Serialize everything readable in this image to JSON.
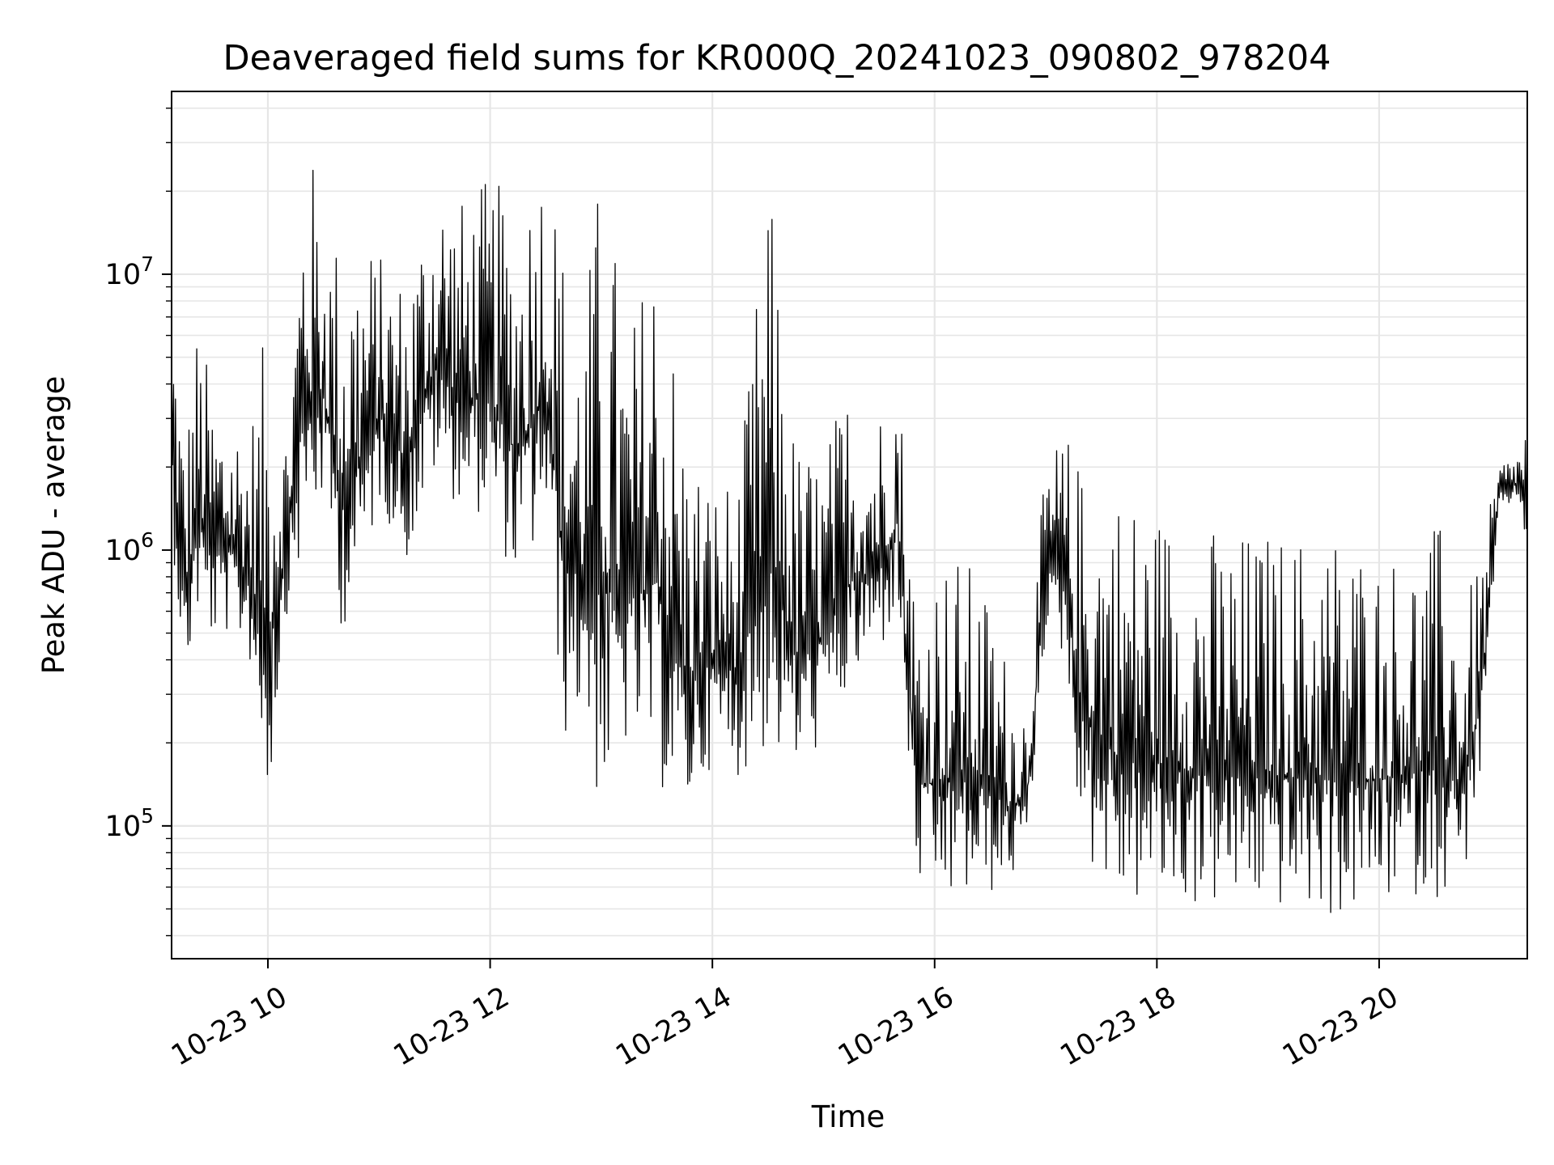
{
  "chart_data": {
    "type": "line",
    "title": "Deaveraged field sums for KR000Q_20241023_090802_978204",
    "xlabel": "Time",
    "ylabel": "Peak ADU - average",
    "xlim": [
      "2024-10-23 09:08",
      "2024-10-23 21:20"
    ],
    "ylim": [
      33000,
      46000000
    ],
    "yscale": "log",
    "grid": true,
    "legend": "none",
    "line_color": "#000000",
    "grid_color": "#e6e6e6",
    "x_ticks": [
      {
        "value": "2024-10-23 10:00",
        "label": "10-23 10"
      },
      {
        "value": "2024-10-23 12:00",
        "label": "10-23 12"
      },
      {
        "value": "2024-10-23 14:00",
        "label": "10-23 14"
      },
      {
        "value": "2024-10-23 16:00",
        "label": "10-23 16"
      },
      {
        "value": "2024-10-23 18:00",
        "label": "10-23 18"
      },
      {
        "value": "2024-10-23 20:00",
        "label": "10-23 20"
      }
    ],
    "y_ticks": [
      {
        "value": 100000,
        "base": "10",
        "exp": "5"
      },
      {
        "value": 1000000,
        "base": "10",
        "exp": "6"
      },
      {
        "value": 10000000,
        "base": "10",
        "exp": "7"
      }
    ],
    "series": [
      {
        "x": [
          "2024-10-23 09:08",
          "2024-10-23 09:15",
          "2024-10-23 09:22",
          "2024-10-23 09:30",
          "2024-10-23 09:40",
          "2024-10-23 09:50",
          "2024-10-23 10:00",
          "2024-10-23 10:10",
          "2024-10-23 10:20",
          "2024-10-23 10:30",
          "2024-10-23 10:40",
          "2024-10-23 10:50",
          "2024-10-23 11:00",
          "2024-10-23 11:15",
          "2024-10-23 11:30",
          "2024-10-23 11:45",
          "2024-10-23 12:00",
          "2024-10-23 12:15",
          "2024-10-23 12:30",
          "2024-10-23 12:40",
          "2024-10-23 12:50",
          "2024-10-23 13:00",
          "2024-10-23 13:15",
          "2024-10-23 13:30",
          "2024-10-23 13:45",
          "2024-10-23 14:00",
          "2024-10-23 14:15",
          "2024-10-23 14:30",
          "2024-10-23 14:45",
          "2024-10-23 15:00",
          "2024-10-23 15:15",
          "2024-10-23 15:30",
          "2024-10-23 15:40",
          "2024-10-23 15:50",
          "2024-10-23 16:00",
          "2024-10-23 16:15",
          "2024-10-23 16:30",
          "2024-10-23 16:40",
          "2024-10-23 16:50",
          "2024-10-23 17:00",
          "2024-10-23 17:10",
          "2024-10-23 17:20",
          "2024-10-23 17:40",
          "2024-10-23 18:00",
          "2024-10-23 18:20",
          "2024-10-23 18:40",
          "2024-10-23 19:00",
          "2024-10-23 19:20",
          "2024-10-23 19:40",
          "2024-10-23 20:00",
          "2024-10-23 20:20",
          "2024-10-23 20:35",
          "2024-10-23 20:45",
          "2024-10-23 20:55",
          "2024-10-23 21:05",
          "2024-10-23 21:15",
          "2024-10-23 21:20"
        ],
        "min": [
          1200000,
          300000,
          550000,
          450000,
          500000,
          400000,
          110000,
          580000,
          1000000,
          1500000,
          500000,
          700000,
          1500000,
          900000,
          1800000,
          1400000,
          1300000,
          700000,
          1200000,
          200000,
          250000,
          100000,
          200000,
          140000,
          100000,
          170000,
          150000,
          180000,
          150000,
          200000,
          300000,
          400000,
          600000,
          60000,
          50000,
          52000,
          55000,
          60000,
          80000,
          500000,
          400000,
          80000,
          50000,
          52000,
          50000,
          50000,
          50000,
          48000,
          45000,
          52000,
          55000,
          55000,
          60000,
          150000,
          1400000,
          1500000,
          1000000
        ],
        "max": [
          10000000,
          2600000,
          7000000,
          4000000,
          3500000,
          3000000,
          7000000,
          3000000,
          35000000,
          18000000,
          13000000,
          15000000,
          12000000,
          10000000,
          26000000,
          19000000,
          23000000,
          18000000,
          35000000,
          13000000,
          7000000,
          29000000,
          6000000,
          18000000,
          3000000,
          1800000,
          2000000,
          24000000,
          2500000,
          2400000,
          4500000,
          3500000,
          5200000,
          700000,
          1000000,
          1000000,
          700000,
          400000,
          300000,
          2200000,
          2800000,
          2000000,
          1800000,
          1500000,
          1300000,
          1200000,
          1200000,
          1200000,
          1300000,
          1000000,
          1100000,
          1300000,
          600000,
          1000000,
          2100000,
          2300000,
          3400000
        ]
      }
    ]
  }
}
